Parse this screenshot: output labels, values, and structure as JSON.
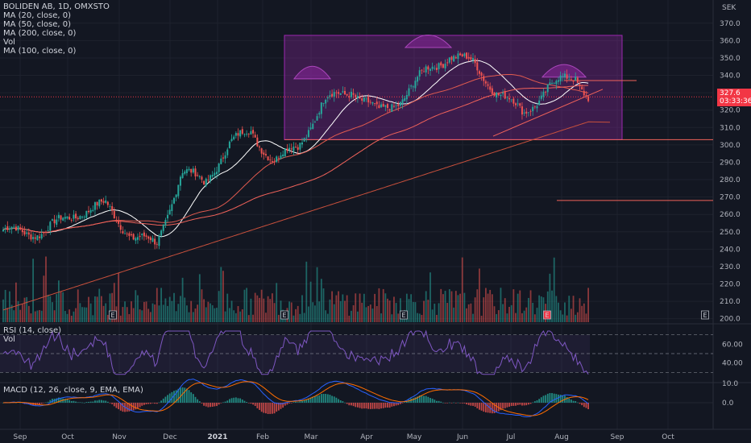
{
  "header": {
    "symbol": "BOLIDEN AB, 1D, OMXSTO",
    "studies": [
      "MA (20, close, 0)",
      "MA (50, close, 0)",
      "MA (200, close, 0)",
      "Vol",
      "MA (100, close, 0)"
    ]
  },
  "price_axis": {
    "currency": "SEK",
    "ticks": [
      "370.0",
      "360.0",
      "350.0",
      "340.0",
      "330.0",
      "320.0",
      "310.0",
      "300.0",
      "290.0",
      "280.0",
      "270.0",
      "260.0",
      "250.0",
      "240.0",
      "230.0",
      "220.0",
      "210.0",
      "200.0"
    ]
  },
  "price_badge": {
    "price": "327.6",
    "countdown": "03:33:36"
  },
  "earnings_marker": "E",
  "rsi": {
    "label": "RSI (14, close)",
    "sublabel": "Vol",
    "ticks": [
      "60.00",
      "40.00"
    ]
  },
  "macd": {
    "label": "MACD (12, 26, close, 9, EMA, EMA)",
    "ticks": [
      "10.0",
      "0.0"
    ]
  },
  "time_axis": [
    "Sep",
    "Oct",
    "Nov",
    "Dec",
    "2021",
    "Feb",
    "Mar",
    "Apr",
    "May",
    "Jun",
    "Jul",
    "Aug",
    "Sep",
    "Oct"
  ],
  "colors": {
    "up": "#26a69a",
    "down": "#ef5350",
    "ma20": "#ffffff",
    "ma50": "#e05a4f",
    "ma100": "#f0625a",
    "ma200": "#c8503c",
    "rsi": "#7e57c2",
    "macd": "#2962ff",
    "signal": "#ff6d00",
    "box": "#9c27b0"
  },
  "chart_data": {
    "type": "candlestick",
    "instrument": "BOLIDEN AB",
    "interval": "1D",
    "exchange": "OMXSTO",
    "ylim": [
      198,
      375
    ],
    "x_months": [
      "Sep",
      "Oct",
      "Nov",
      "Dec",
      "2021",
      "Feb",
      "Mar",
      "Apr",
      "May",
      "Jun",
      "Jul",
      "Aug",
      "Sep",
      "Oct"
    ],
    "close_path": [
      [
        "Sep",
        250
      ],
      [
        "Oct",
        262
      ],
      [
        "Oct",
        265
      ],
      [
        "Nov",
        248
      ],
      [
        "Nov",
        242
      ],
      [
        "Dec",
        285
      ],
      [
        "Dec",
        278
      ],
      [
        "2021",
        300
      ],
      [
        "2021",
        308
      ],
      [
        "Feb",
        290
      ],
      [
        "Feb",
        300
      ],
      [
        "Mar",
        325
      ],
      [
        "Mar",
        332
      ],
      [
        "Apr",
        318
      ],
      [
        "Apr",
        327
      ],
      [
        "May",
        342
      ],
      [
        "May",
        352
      ],
      [
        "Jun",
        346
      ],
      [
        "Jun",
        330
      ],
      [
        "Jul",
        318
      ],
      [
        "Jul",
        333
      ],
      [
        "Aug",
        340
      ],
      [
        "Aug",
        327.6
      ]
    ],
    "last_price": 327.6,
    "horizontal_levels": [
      337,
      303,
      268
    ],
    "pattern_box": {
      "top": 363,
      "bottom": 303,
      "from": "Feb",
      "to": "Aug"
    },
    "rsi_levels": [
      70,
      50,
      30
    ],
    "macd_zero": 0
  }
}
